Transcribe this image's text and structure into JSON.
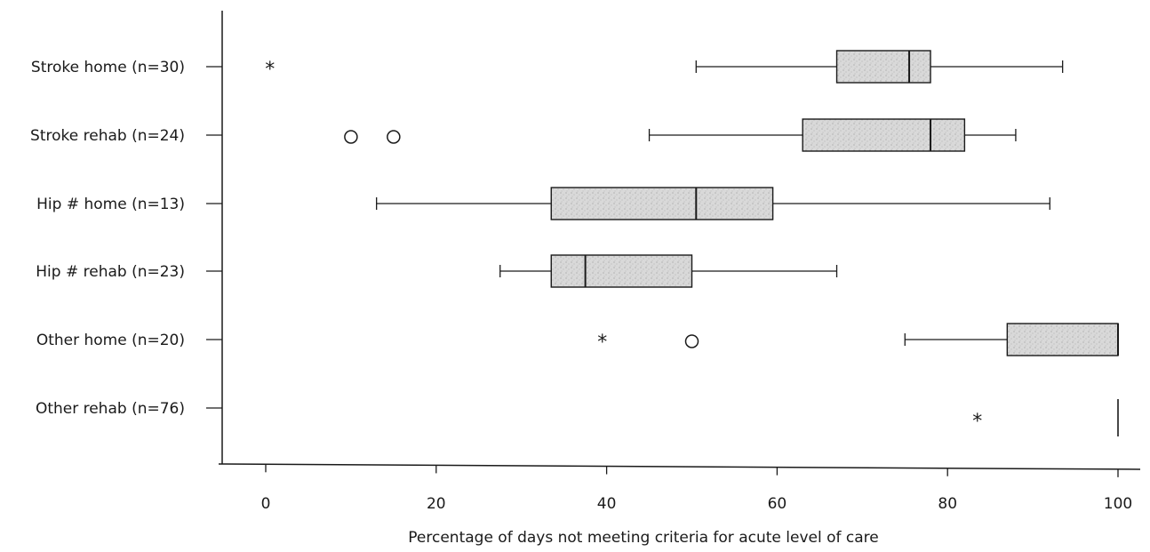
{
  "chart_data": {
    "type": "boxplot",
    "orientation": "horizontal",
    "xlabel": "Percentage of days not meeting criteria for acute level of care",
    "xlim": [
      -5,
      103
    ],
    "xticks": [
      0,
      20,
      40,
      60,
      80,
      100
    ],
    "xtick_labels": [
      "0",
      "20",
      "40",
      "60",
      "80",
      "100"
    ],
    "categories": [
      "Stroke home (n=30)",
      "Stroke rehab (n=24)",
      "Hip # home (n=13)",
      "Hip # rehab (n=23)",
      "Other home (n=20)",
      "Other rehab (n=76)"
    ],
    "boxes": [
      {
        "category": "Stroke home (n=30)",
        "whisker_low": 50.5,
        "q1": 67,
        "median": 75.5,
        "q3": 78,
        "whisker_high": 93.5,
        "outliers": [],
        "extremes": [
          0.5
        ]
      },
      {
        "category": "Stroke rehab (n=24)",
        "whisker_low": 45,
        "q1": 63,
        "median": 78,
        "q3": 82,
        "whisker_high": 88,
        "outliers": [
          10,
          15
        ],
        "extremes": []
      },
      {
        "category": "Hip # home (n=13)",
        "whisker_low": 13,
        "q1": 33.5,
        "median": 50.5,
        "q3": 59.5,
        "whisker_high": 92,
        "outliers": [],
        "extremes": []
      },
      {
        "category": "Hip # rehab (n=23)",
        "whisker_low": 27.5,
        "q1": 33.5,
        "median": 37.5,
        "q3": 50,
        "whisker_high": 67,
        "outliers": [],
        "extremes": []
      },
      {
        "category": "Other home (n=20)",
        "whisker_low": 75,
        "q1": 87,
        "median": 100,
        "q3": 100,
        "whisker_high": 100,
        "outliers": [
          50
        ],
        "extremes": [
          39.5
        ]
      },
      {
        "category": "Other rehab (n=76)",
        "whisker_low": 100,
        "q1": 100,
        "median": 100,
        "q3": 100,
        "whisker_high": 100,
        "outliers": [],
        "extremes": [
          83.5
        ]
      }
    ],
    "box_fill": "#d6d6d6",
    "stroke_color": "#1a1a1a",
    "grid": false
  }
}
